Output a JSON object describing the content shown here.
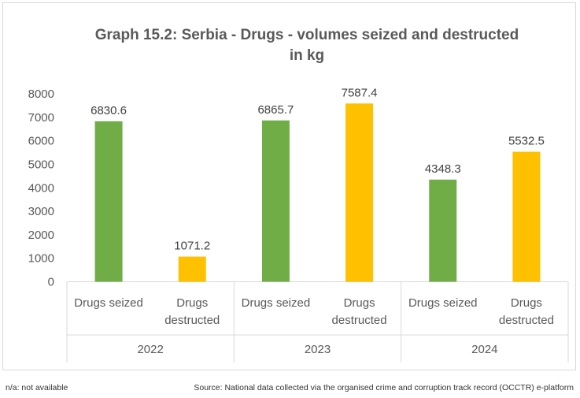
{
  "chart_data": {
    "type": "bar",
    "title_line1": "Graph 15.2: Serbia - Drugs - volumes seized and destructed",
    "title_line2": "in kg",
    "xlabel": "",
    "ylabel": "",
    "ylim": [
      0,
      8000
    ],
    "yticks": [
      0,
      1000,
      2000,
      3000,
      4000,
      5000,
      6000,
      7000,
      8000
    ],
    "grid": false,
    "legend": "none",
    "groups": [
      {
        "label": "2022",
        "bars": [
          {
            "category": [
              "Drugs seized"
            ],
            "value": 6830.6,
            "value_label": "6830.6",
            "color": "#70ad47"
          },
          {
            "category": [
              "Drugs",
              "destructed"
            ],
            "value": 1071.2,
            "value_label": "1071.2",
            "color": "#ffc000"
          }
        ]
      },
      {
        "label": "2023",
        "bars": [
          {
            "category": [
              "Drugs seized"
            ],
            "value": 6865.7,
            "value_label": "6865.7",
            "color": "#70ad47"
          },
          {
            "category": [
              "Drugs",
              "destructed"
            ],
            "value": 7587.4,
            "value_label": "7587.4",
            "color": "#ffc000"
          }
        ]
      },
      {
        "label": "2024",
        "bars": [
          {
            "category": [
              "Drugs seized"
            ],
            "value": 4348.3,
            "value_label": "4348.3",
            "color": "#70ad47"
          },
          {
            "category": [
              "Drugs",
              "destructed"
            ],
            "value": 5532.5,
            "value_label": "5532.5",
            "color": "#ffc000"
          }
        ]
      }
    ]
  },
  "footer": {
    "left": "n/a: not available",
    "right": "Source: National data collected via the organised crime and corruption track record (OCCTR) e-platform"
  }
}
